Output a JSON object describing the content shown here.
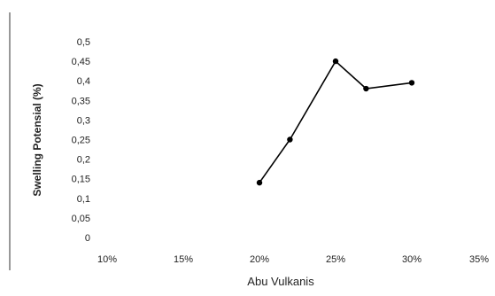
{
  "chart_data": {
    "type": "line",
    "xlabel": "Abu Vulkanis",
    "ylabel": "Swelling Potensial (%)",
    "x_ticks": [
      "10%",
      "15%",
      "20%",
      "25%",
      "30%",
      "35%"
    ],
    "y_ticks": [
      "0",
      "0,05",
      "0,1",
      "0,15",
      "0,2",
      "0,25",
      "0,3",
      "0,35",
      "0,4",
      "0,45",
      "0,5"
    ],
    "xlim": [
      10,
      35
    ],
    "ylim": [
      0,
      0.5
    ],
    "grid": false,
    "legend": "none",
    "series": [
      {
        "x": [
          20,
          22,
          25,
          27,
          30
        ],
        "y": [
          0.14,
          0.25,
          0.45,
          0.38,
          0.395
        ],
        "color": "#000000"
      }
    ]
  }
}
